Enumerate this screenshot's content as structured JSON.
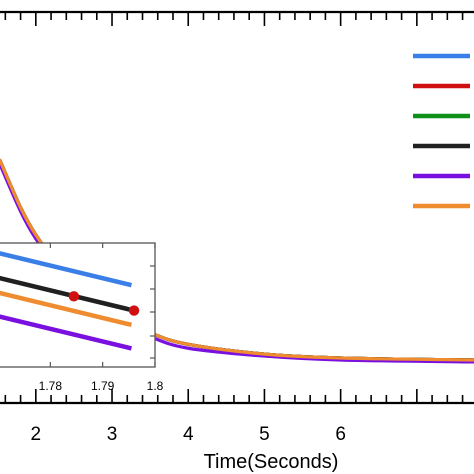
{
  "chart_data": [
    {
      "type": "line",
      "xlabel": "Time(Seconds)",
      "xlim": [
        1.53,
        7.75
      ],
      "ylim": [
        0,
        1
      ],
      "x_ticks": [
        2,
        3,
        4,
        5,
        6
      ],
      "grid": false,
      "legend": "right",
      "series": [
        {
          "color": "#3a7ee8",
          "x": [
            1.53,
            1.8,
            2.0,
            2.3,
            2.6,
            3.0,
            3.5,
            4.0,
            5.0,
            6.0,
            7.75
          ],
          "y": [
            0.62,
            0.5,
            0.43,
            0.35,
            0.29,
            0.23,
            0.18,
            0.15,
            0.125,
            0.115,
            0.11
          ]
        },
        {
          "color": "#d01010",
          "x": [
            1.53,
            1.8,
            2.0,
            2.3,
            2.6,
            3.0,
            3.5,
            4.0,
            5.0,
            6.0,
            7.75
          ],
          "y": [
            0.62,
            0.5,
            0.43,
            0.35,
            0.29,
            0.23,
            0.18,
            0.15,
            0.125,
            0.115,
            0.11
          ]
        },
        {
          "color": "#10901a",
          "x": [
            1.53,
            1.8,
            2.0,
            2.3,
            2.6,
            3.0,
            3.5,
            4.0,
            5.0,
            6.0,
            7.75
          ],
          "y": [
            0.62,
            0.5,
            0.43,
            0.35,
            0.29,
            0.23,
            0.18,
            0.15,
            0.125,
            0.115,
            0.11
          ]
        },
        {
          "color": "#202020",
          "x": [
            1.53,
            1.8,
            2.0,
            2.3,
            2.6,
            3.0,
            3.5,
            4.0,
            5.0,
            6.0,
            7.75
          ],
          "y": [
            0.62,
            0.5,
            0.43,
            0.35,
            0.29,
            0.23,
            0.18,
            0.15,
            0.125,
            0.115,
            0.11
          ]
        },
        {
          "color": "#7a10e0",
          "x": [
            1.53,
            1.8,
            2.0,
            2.3,
            2.6,
            3.0,
            3.5,
            4.0,
            5.0,
            6.0,
            7.75
          ],
          "y": [
            0.61,
            0.49,
            0.42,
            0.34,
            0.28,
            0.22,
            0.17,
            0.14,
            0.12,
            0.11,
            0.105
          ]
        },
        {
          "color": "#f08c30",
          "x": [
            1.53,
            1.8,
            2.0,
            2.3,
            2.6,
            3.0,
            3.5,
            4.0,
            5.0,
            6.0,
            7.75
          ],
          "y": [
            0.62,
            0.5,
            0.43,
            0.35,
            0.29,
            0.23,
            0.18,
            0.15,
            0.125,
            0.115,
            0.11
          ]
        }
      ]
    },
    {
      "type": "line",
      "xlim": [
        1.77,
        1.8
      ],
      "x_ticks": [
        1.78,
        1.79,
        1.8
      ],
      "ylim": [
        0,
        1
      ],
      "grid": false,
      "series": [
        {
          "color": "#3a7ee8",
          "x": [
            1.77,
            1.7955
          ],
          "y": [
            0.92,
            0.66
          ]
        },
        {
          "color": "#202020",
          "x": [
            1.77,
            1.7955
          ],
          "y": [
            0.72,
            0.46
          ]
        },
        {
          "color": "#f08c30",
          "x": [
            1.77,
            1.7955
          ],
          "y": [
            0.6,
            0.34
          ]
        },
        {
          "color": "#7a10e0",
          "x": [
            1.77,
            1.7955
          ],
          "y": [
            0.41,
            0.15
          ]
        },
        {
          "color": "#d01010",
          "type": "scatter",
          "x": [
            1.7845,
            1.796
          ],
          "y": [
            0.57,
            0.455
          ]
        }
      ]
    }
  ]
}
